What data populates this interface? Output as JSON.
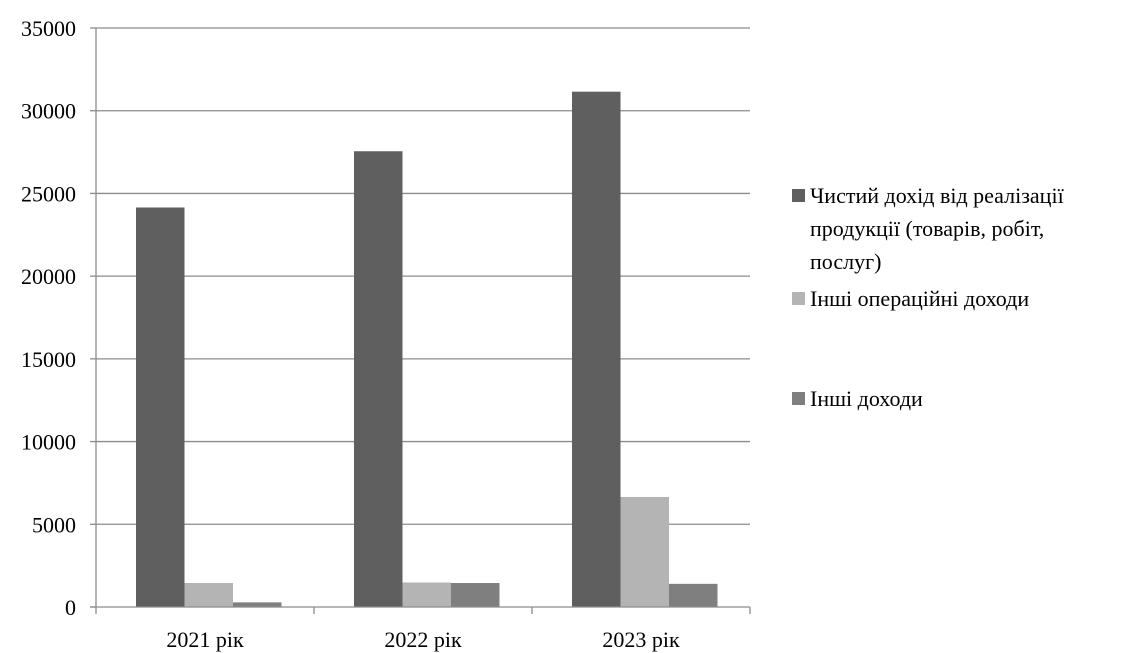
{
  "chart_data": {
    "type": "bar",
    "title": "",
    "xlabel": "",
    "ylabel": "",
    "categories": [
      "2021 рік",
      "2022 рік",
      "2023 рік"
    ],
    "ylim": [
      0,
      35000
    ],
    "yticks": [
      "0",
      "5000",
      "10000",
      "15000",
      "20000",
      "25000",
      "30000",
      "35000"
    ],
    "grid": true,
    "legend_position": "right",
    "series": [
      {
        "name": "Чистий дохід від реалізації продукції (товарів, робіт, послуг)",
        "name_lines": [
          "Чистий дохід від реалізації",
          "продукції (товарів, робіт,",
          "послуг)"
        ],
        "color": "#5f5f5f",
        "values": [
          24150,
          27550,
          31150
        ]
      },
      {
        "name": "Інші операційні доходи",
        "name_lines": [
          "Інші операційні доходи"
        ],
        "color": "#b4b4b4",
        "values": [
          1450,
          1480,
          6650
        ]
      },
      {
        "name": "Інші доходи",
        "name_lines": [
          "Інші доходи"
        ],
        "color": "#7f7f7f",
        "values": [
          280,
          1450,
          1400
        ]
      }
    ]
  }
}
